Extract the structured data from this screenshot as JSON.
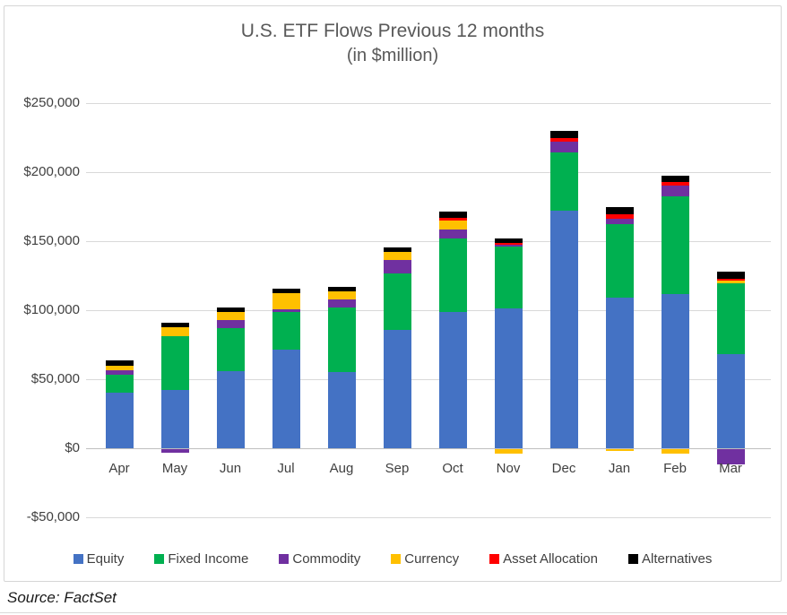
{
  "title": {
    "line1": "U.S. ETF Flows Previous 12 months",
    "line2": "(in $million)"
  },
  "source": "Source: FactSet",
  "chart_data": {
    "type": "bar",
    "stacked": true,
    "title": "U.S. ETF Flows Previous 12 months (in $million)",
    "xlabel": "",
    "ylabel": "",
    "ylim": [
      -50000,
      250000
    ],
    "grid": true,
    "legend_position": "bottom",
    "categories": [
      "Apr",
      "May",
      "Jun",
      "Jul",
      "Aug",
      "Sep",
      "Oct",
      "Nov",
      "Dec",
      "Jan",
      "Feb",
      "Mar"
    ],
    "yticks": [
      {
        "value": 250000,
        "label": "$250,000"
      },
      {
        "value": 200000,
        "label": "$200,000"
      },
      {
        "value": 150000,
        "label": "$150,000"
      },
      {
        "value": 100000,
        "label": "$100,000"
      },
      {
        "value": 50000,
        "label": "$50,000"
      },
      {
        "value": 0,
        "label": "$0"
      },
      {
        "value": -50000,
        "label": "-$50,000"
      }
    ],
    "series": [
      {
        "name": "Equity",
        "color": "#4472C4",
        "values": [
          40000,
          42000,
          56000,
          71500,
          55000,
          86000,
          99000,
          101000,
          172000,
          109000,
          112000,
          68500
        ]
      },
      {
        "name": "Fixed Income",
        "color": "#00B050",
        "values": [
          13000,
          39000,
          31000,
          27500,
          47000,
          41000,
          53000,
          45000,
          42000,
          53000,
          71000,
          51000
        ]
      },
      {
        "name": "Commodity",
        "color": "#7030A0",
        "values": [
          3500,
          -2500,
          6000,
          2000,
          6000,
          10000,
          6500,
          1500,
          8000,
          4000,
          8000,
          -11000
        ]
      },
      {
        "name": "Currency",
        "color": "#FFC000",
        "values": [
          3500,
          6500,
          6000,
          12000,
          6000,
          6000,
          6500,
          -3500,
          0,
          -1500,
          -3000,
          2000
        ]
      },
      {
        "name": "Asset Allocation",
        "color": "#FF0000",
        "values": [
          0,
          0,
          0,
          0,
          0,
          0,
          2000,
          1500,
          2500,
          3000,
          2500,
          1500
        ]
      },
      {
        "name": "Alternatives",
        "color": "#000000",
        "values": [
          4000,
          3000,
          3500,
          3000,
          3500,
          3000,
          4500,
          3500,
          5000,
          5500,
          4500,
          5000
        ]
      }
    ]
  },
  "colors": {
    "grid": "#D9D9D9",
    "axis": "#BFBFBF",
    "title_text": "#595959",
    "tick_text": "#404040"
  }
}
